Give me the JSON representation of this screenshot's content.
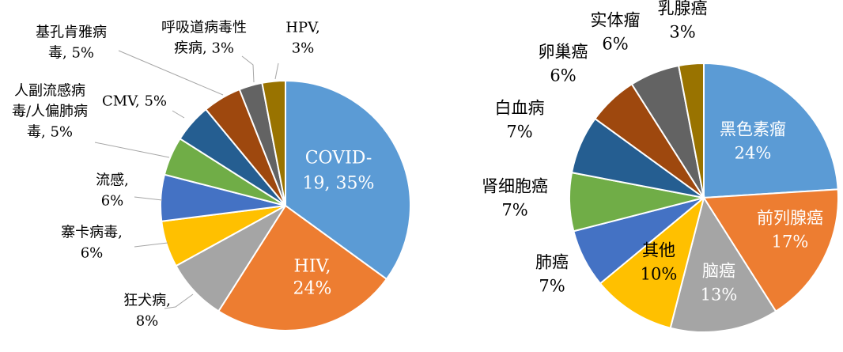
{
  "chart_data": [
    {
      "type": "pie",
      "title": "",
      "slices": [
        {
          "label_lines": [
            "COVID-",
            "19, 35%"
          ],
          "category": "COVID-19",
          "value": 35,
          "color": "#5B9BD5"
        },
        {
          "label_lines": [
            "HIV,",
            "24%"
          ],
          "category": "HIV",
          "value": 24,
          "color": "#ED7D31"
        },
        {
          "label_lines": [
            "狂犬病,",
            "8%"
          ],
          "category": "狂犬病",
          "value": 8,
          "color": "#A5A5A5"
        },
        {
          "label_lines": [
            "寨卡病毒,",
            "6%"
          ],
          "category": "寨卡病毒",
          "value": 6,
          "color": "#FFC000"
        },
        {
          "label_lines": [
            "流感,",
            "6%"
          ],
          "category": "流感",
          "value": 6,
          "color": "#4472C4"
        },
        {
          "label_lines": [
            "人副流感病",
            "毒/人偏肺病",
            "毒, 5%"
          ],
          "category": "人副流感病毒/人偏肺病毒",
          "value": 5,
          "color": "#70AD47"
        },
        {
          "label_lines": [
            "CMV, 5%"
          ],
          "category": "CMV",
          "value": 5,
          "color": "#255E91"
        },
        {
          "label_lines": [
            "基孔肯雅病",
            "毒, 5%"
          ],
          "category": "基孔肯雅病毒",
          "value": 5,
          "color": "#9E480E"
        },
        {
          "label_lines": [
            "呼吸道病毒性",
            "疾病, 3%"
          ],
          "category": "呼吸道病毒性疾病",
          "value": 3,
          "color": "#636363"
        },
        {
          "label_lines": [
            "HPV,",
            "3%"
          ],
          "category": "HPV",
          "value": 3,
          "color": "#997300"
        }
      ]
    },
    {
      "type": "pie",
      "title": "",
      "slices": [
        {
          "label_lines": [
            "黑色素瘤",
            "24%"
          ],
          "category": "黑色素瘤",
          "value": 24,
          "color": "#5B9BD5"
        },
        {
          "label_lines": [
            "前列腺癌",
            "17%"
          ],
          "category": "前列腺癌",
          "value": 17,
          "color": "#ED7D31"
        },
        {
          "label_lines": [
            "脑癌",
            "13%"
          ],
          "category": "脑癌",
          "value": 13,
          "color": "#A5A5A5"
        },
        {
          "label_lines": [
            "其他",
            "10%"
          ],
          "category": "其他",
          "value": 10,
          "color": "#FFC000"
        },
        {
          "label_lines": [
            "肺癌",
            "7%"
          ],
          "category": "肺癌",
          "value": 7,
          "color": "#4472C4"
        },
        {
          "label_lines": [
            "肾细胞癌",
            "7%"
          ],
          "category": "肾细胞癌",
          "value": 7,
          "color": "#70AD47"
        },
        {
          "label_lines": [
            "白血病",
            "7%"
          ],
          "category": "白血病",
          "value": 7,
          "color": "#255E91"
        },
        {
          "label_lines": [
            "卵巢癌",
            "6%"
          ],
          "category": "卵巢癌",
          "value": 6,
          "color": "#9E480E"
        },
        {
          "label_lines": [
            "实体瘤",
            "6%"
          ],
          "category": "实体瘤",
          "value": 6,
          "color": "#636363"
        },
        {
          "label_lines": [
            "乳腺癌",
            "3%"
          ],
          "category": "乳腺癌",
          "value": 3,
          "color": "#997300"
        }
      ]
    }
  ]
}
